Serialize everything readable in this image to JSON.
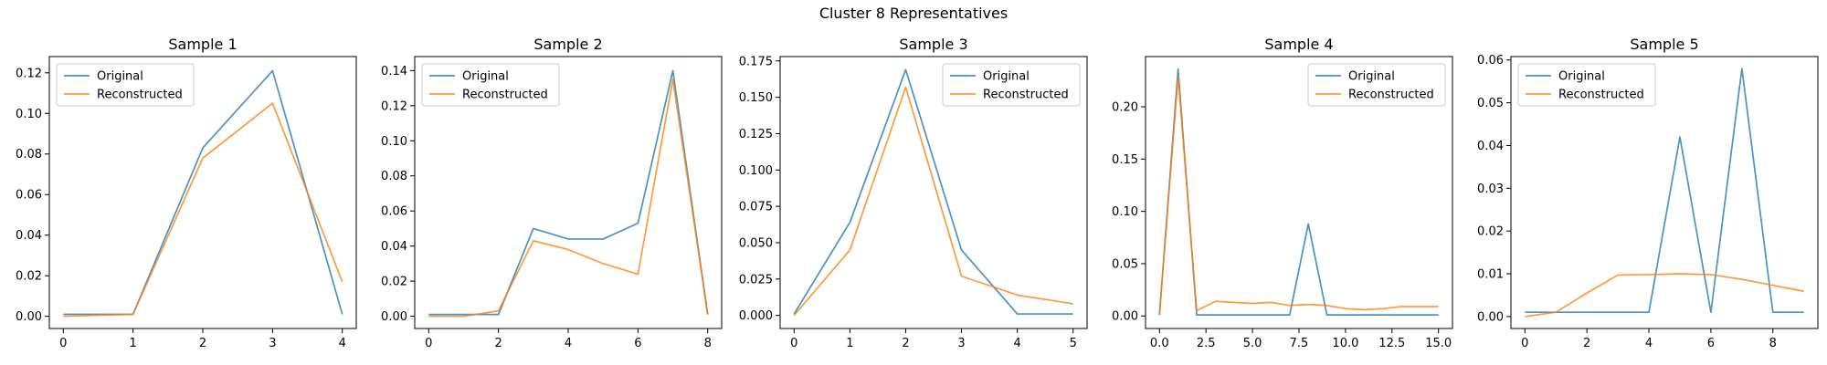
{
  "figure": {
    "title": "Cluster 8 Representatives"
  },
  "colors": {
    "original": "#1f77b4",
    "reconstructed": "#ff7f0e"
  },
  "chart_data": [
    {
      "type": "line",
      "title": "Sample 1",
      "legend": "upper-left",
      "xlim": [
        -0.2,
        4.2
      ],
      "ylim": [
        -0.006,
        0.128
      ],
      "xticks": [
        0,
        1,
        2,
        3,
        4
      ],
      "xtick_labels": [
        "0",
        "1",
        "2",
        "3",
        "4"
      ],
      "yticks": [
        0,
        0.02,
        0.04,
        0.06,
        0.08,
        0.1,
        0.12
      ],
      "ytick_labels": [
        "0.00",
        "0.02",
        "0.04",
        "0.06",
        "0.08",
        "0.10",
        "0.12"
      ],
      "series": [
        {
          "name": "Original",
          "x": [
            0,
            1,
            2,
            3,
            4
          ],
          "y": [
            0.001,
            0.001,
            0.083,
            0.121,
            0.001
          ]
        },
        {
          "name": "Reconstructed",
          "x": [
            0,
            1,
            2,
            3,
            4
          ],
          "y": [
            0.0,
            0.001,
            0.078,
            0.105,
            0.017
          ]
        }
      ]
    },
    {
      "type": "line",
      "title": "Sample 2",
      "legend": "upper-left",
      "xlim": [
        -0.4,
        8.4
      ],
      "ylim": [
        -0.007,
        0.148
      ],
      "xticks": [
        0,
        2,
        4,
        6,
        8
      ],
      "xtick_labels": [
        "0",
        "2",
        "4",
        "6",
        "8"
      ],
      "yticks": [
        0,
        0.02,
        0.04,
        0.06,
        0.08,
        0.1,
        0.12,
        0.14
      ],
      "ytick_labels": [
        "0.00",
        "0.02",
        "0.04",
        "0.06",
        "0.08",
        "0.10",
        "0.12",
        "0.14"
      ],
      "series": [
        {
          "name": "Original",
          "x": [
            0,
            1,
            2,
            3,
            4,
            5,
            6,
            7,
            8
          ],
          "y": [
            0.001,
            0.001,
            0.001,
            0.05,
            0.044,
            0.044,
            0.053,
            0.14,
            0.001
          ]
        },
        {
          "name": "Reconstructed",
          "x": [
            0,
            1,
            2,
            3,
            4,
            5,
            6,
            7,
            8
          ],
          "y": [
            0.0,
            0.0,
            0.003,
            0.043,
            0.038,
            0.03,
            0.024,
            0.135,
            0.001
          ]
        }
      ]
    },
    {
      "type": "line",
      "title": "Sample 3",
      "legend": "upper-right",
      "xlim": [
        -0.25,
        5.25
      ],
      "ylim": [
        -0.009,
        0.178
      ],
      "xticks": [
        0,
        1,
        2,
        3,
        4,
        5
      ],
      "xtick_labels": [
        "0",
        "1",
        "2",
        "3",
        "4",
        "5"
      ],
      "yticks": [
        0,
        0.025,
        0.05,
        0.075,
        0.1,
        0.125,
        0.15,
        0.175
      ],
      "ytick_labels": [
        "0.000",
        "0.025",
        "0.050",
        "0.075",
        "0.100",
        "0.125",
        "0.150",
        "0.175"
      ],
      "series": [
        {
          "name": "Original",
          "x": [
            0,
            1,
            2,
            3,
            4,
            5
          ],
          "y": [
            0.001,
            0.064,
            0.169,
            0.045,
            0.001,
            0.001
          ]
        },
        {
          "name": "Reconstructed",
          "x": [
            0,
            1,
            2,
            3,
            4,
            5
          ],
          "y": [
            0.0,
            0.045,
            0.157,
            0.027,
            0.014,
            0.008
          ]
        }
      ]
    },
    {
      "type": "line",
      "title": "Sample 4",
      "legend": "upper-right",
      "xlim": [
        -0.75,
        15.75
      ],
      "ylim": [
        -0.012,
        0.248
      ],
      "xticks": [
        0,
        2.5,
        5,
        7.5,
        10,
        12.5,
        15
      ],
      "xtick_labels": [
        "0.0",
        "2.5",
        "5.0",
        "7.5",
        "10.0",
        "12.5",
        "15.0"
      ],
      "yticks": [
        0,
        0.05,
        0.1,
        0.15,
        0.2
      ],
      "ytick_labels": [
        "0.00",
        "0.05",
        "0.10",
        "0.15",
        "0.20"
      ],
      "series": [
        {
          "name": "Original",
          "x": [
            0,
            1,
            2,
            3,
            4,
            5,
            6,
            7,
            8,
            9,
            10,
            11,
            12,
            13,
            14,
            15
          ],
          "y": [
            0.001,
            0.236,
            0.001,
            0.001,
            0.001,
            0.001,
            0.001,
            0.001,
            0.088,
            0.001,
            0.001,
            0.001,
            0.001,
            0.001,
            0.001,
            0.001
          ]
        },
        {
          "name": "Reconstructed",
          "x": [
            0,
            1,
            2,
            3,
            4,
            5,
            6,
            7,
            8,
            9,
            10,
            11,
            12,
            13,
            14,
            15
          ],
          "y": [
            0.002,
            0.229,
            0.005,
            0.014,
            0.013,
            0.012,
            0.013,
            0.01,
            0.011,
            0.01,
            0.007,
            0.006,
            0.007,
            0.009,
            0.009,
            0.009
          ]
        }
      ]
    },
    {
      "type": "line",
      "title": "Sample 5",
      "legend": "upper-left",
      "xlim": [
        -0.45,
        9.45
      ],
      "ylim": [
        -0.0028,
        0.0608
      ],
      "xticks": [
        0,
        2,
        4,
        6,
        8
      ],
      "xtick_labels": [
        "0",
        "2",
        "4",
        "6",
        "8"
      ],
      "yticks": [
        0,
        0.01,
        0.02,
        0.03,
        0.04,
        0.05,
        0.06
      ],
      "ytick_labels": [
        "0.00",
        "0.01",
        "0.02",
        "0.03",
        "0.04",
        "0.05",
        "0.06"
      ],
      "series": [
        {
          "name": "Original",
          "x": [
            0,
            1,
            2,
            3,
            4,
            5,
            6,
            7,
            8,
            9
          ],
          "y": [
            0.001,
            0.001,
            0.001,
            0.001,
            0.001,
            0.042,
            0.001,
            0.058,
            0.001,
            0.001
          ]
        },
        {
          "name": "Reconstructed",
          "x": [
            0,
            1,
            2,
            3,
            4,
            5,
            6,
            7,
            8,
            9
          ],
          "y": [
            0.0,
            0.001,
            0.0055,
            0.0097,
            0.0098,
            0.01,
            0.0098,
            0.0087,
            0.0073,
            0.0059
          ]
        }
      ]
    }
  ]
}
